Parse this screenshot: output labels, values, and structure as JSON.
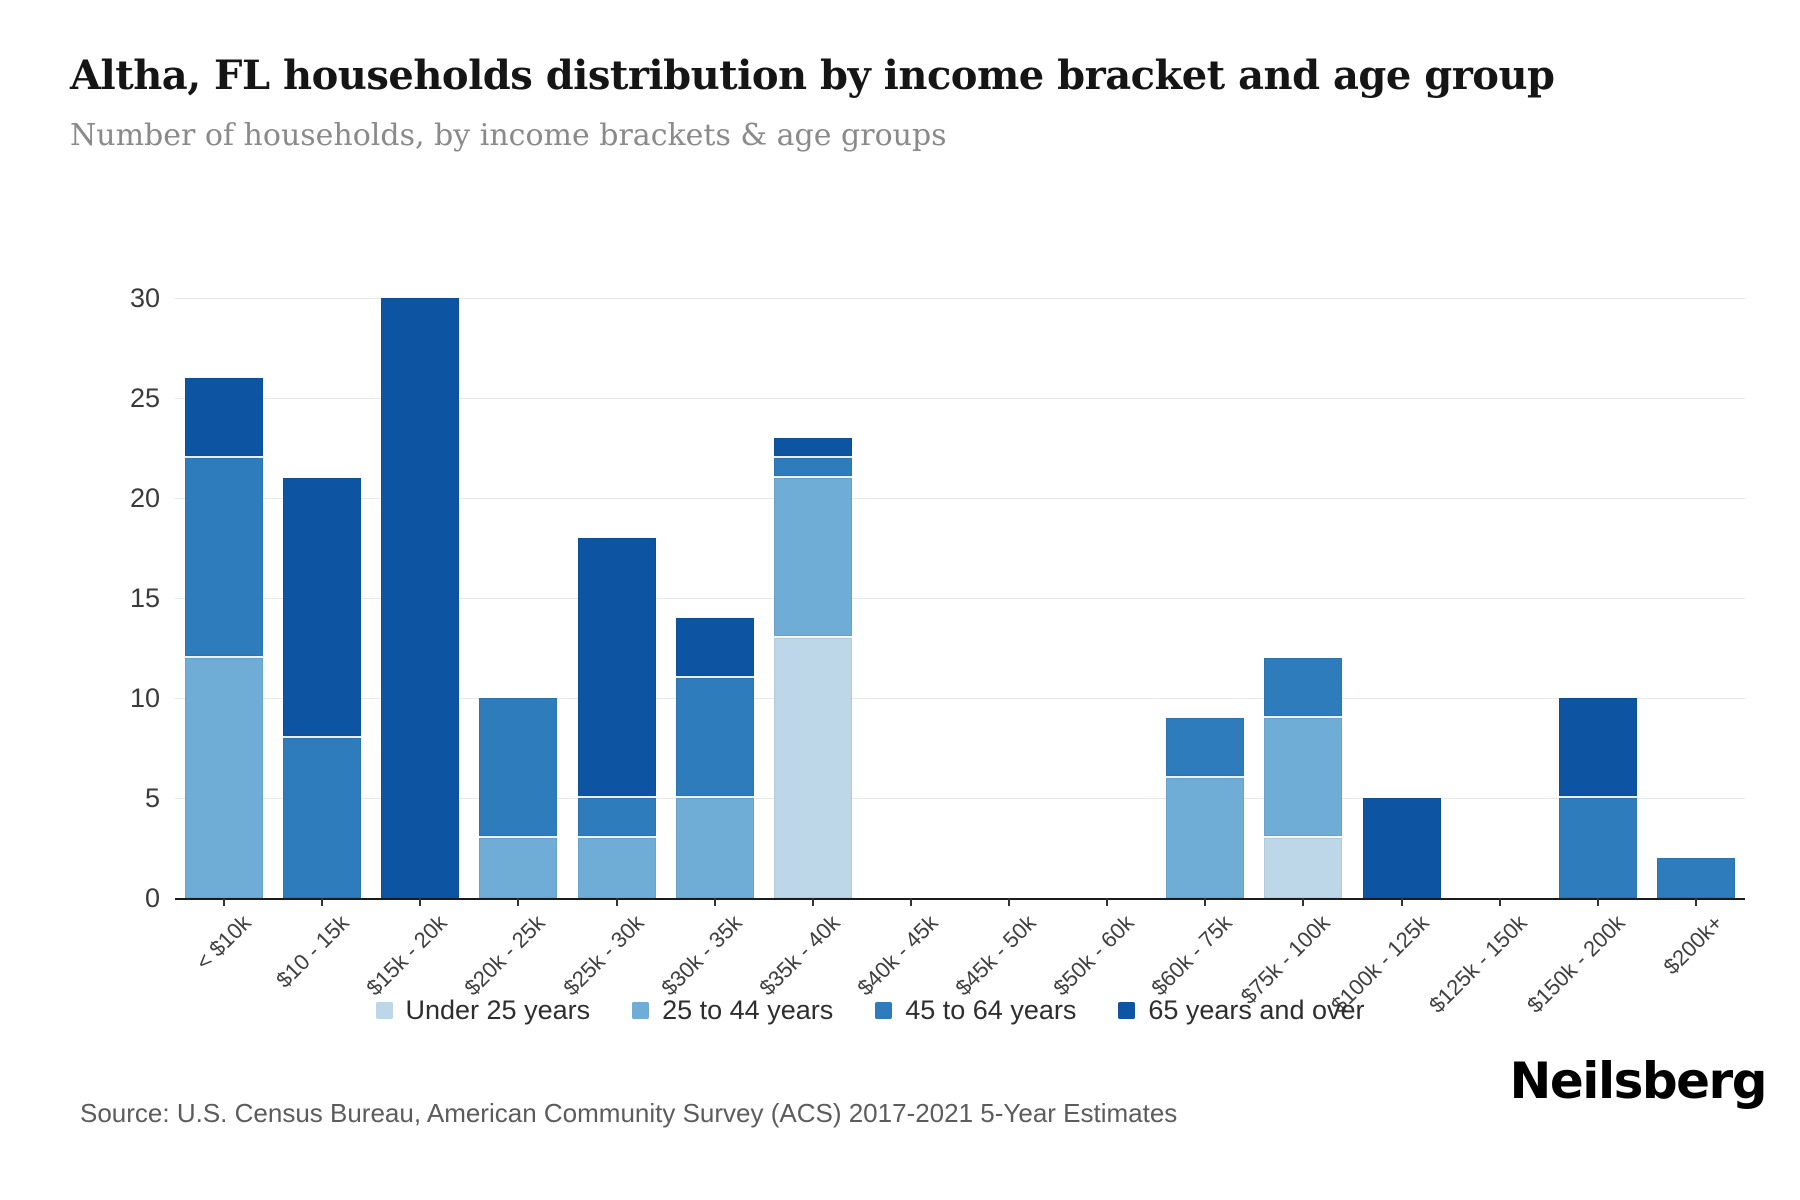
{
  "header": {
    "title": "Altha, FL households distribution by income bracket and age group",
    "subtitle": "Number of households, by income brackets & age groups"
  },
  "chart_data": {
    "type": "bar",
    "stacked": true,
    "title": "Altha, FL households distribution by income bracket and age group",
    "xlabel": "",
    "ylabel": "Number of households",
    "ylim": [
      0,
      30
    ],
    "yticks": [
      0,
      5,
      10,
      15,
      20,
      25,
      30
    ],
    "grid": true,
    "legend_position": "bottom",
    "categories": [
      "< $10k",
      "$10 - 15k",
      "$15k - 20k",
      "$20k - 25k",
      "$25k - 30k",
      "$30k - 35k",
      "$35k - 40k",
      "$40k - 45k",
      "$45k - 50k",
      "$50k - 60k",
      "$60k - 75k",
      "$75k - 100k",
      "$100k - 125k",
      "$125k - 150k",
      "$150k - 200k",
      "$200k+"
    ],
    "series": [
      {
        "name": "Under 25 years",
        "color": "#bdd6e8",
        "values": [
          0,
          0,
          0,
          0,
          0,
          0,
          13,
          0,
          0,
          0,
          0,
          3,
          0,
          0,
          0,
          0
        ]
      },
      {
        "name": "25 to 44 years",
        "color": "#6fadd6",
        "values": [
          12,
          0,
          0,
          3,
          3,
          5,
          8,
          0,
          0,
          0,
          6,
          6,
          0,
          0,
          0,
          0
        ]
      },
      {
        "name": "45 to 64 years",
        "color": "#2f7cbc",
        "values": [
          10,
          8,
          0,
          7,
          2,
          6,
          1,
          0,
          0,
          0,
          3,
          3,
          0,
          0,
          5,
          2
        ]
      },
      {
        "name": "65 years and over",
        "color": "#0d55a2",
        "values": [
          4,
          13,
          30,
          0,
          13,
          3,
          1,
          0,
          0,
          0,
          0,
          0,
          5,
          0,
          5,
          0
        ]
      }
    ],
    "totals": [
      26,
      21,
      30,
      10,
      18,
      14,
      23,
      0,
      0,
      0,
      9,
      12,
      5,
      0,
      10,
      2
    ]
  },
  "footer": {
    "source": "Source: U.S. Census Bureau, American Community Survey (ACS) 2017-2021 5-Year Estimates",
    "logo": "Neilsberg"
  }
}
